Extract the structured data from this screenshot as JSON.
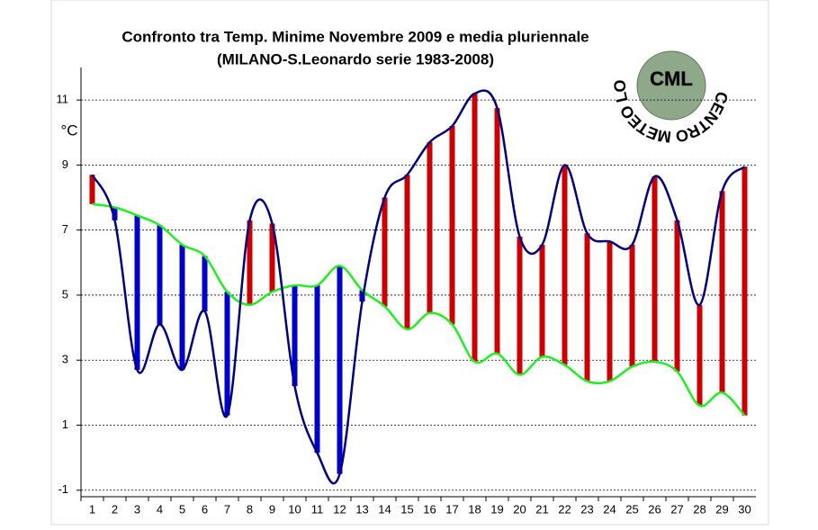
{
  "chart_data": {
    "type": "line",
    "title": "Confronto tra Temp. Minime Novembre 2009 e media pluriennale",
    "subtitle": "(MILANO-S.Leonardo serie 1983-2008)",
    "y_label": "°C",
    "logo": {
      "ring": "CENTRO METEO LOMBARDO",
      "abbr": "CML"
    },
    "categories": [
      "1",
      "2",
      "3",
      "4",
      "5",
      "6",
      "7",
      "8",
      "9",
      "10",
      "11",
      "12",
      "13",
      "14",
      "15",
      "16",
      "17",
      "18",
      "19",
      "20",
      "21",
      "22",
      "23",
      "24",
      "25",
      "26",
      "27",
      "28",
      "29",
      "30"
    ],
    "series": [
      {
        "color": "#000080",
        "values": [
          8.7,
          7.3,
          2.7,
          4.1,
          2.7,
          4.5,
          1.3,
          7.3,
          7.2,
          2.2,
          0.15,
          -0.5,
          4.8,
          8.0,
          8.7,
          9.7,
          10.2,
          11.2,
          10.75,
          6.8,
          6.55,
          9.0,
          6.9,
          6.65,
          6.55,
          8.65,
          7.3,
          4.7,
          8.2,
          8.95
        ]
      },
      {
        "color": "#22ee22",
        "values": [
          7.8,
          7.7,
          7.45,
          7.15,
          6.55,
          6.2,
          5.1,
          4.7,
          5.1,
          5.3,
          5.3,
          5.9,
          5.15,
          4.65,
          3.95,
          4.45,
          4.1,
          2.95,
          3.2,
          2.55,
          3.1,
          2.85,
          2.35,
          2.35,
          2.8,
          2.95,
          2.65,
          1.6,
          2.0,
          1.3
        ]
      }
    ],
    "above_color": "#cc0000",
    "below_color": "#0000cc",
    "ylim": [
      -1.2,
      12
    ],
    "yticks": [
      -1,
      1,
      3,
      5,
      7,
      9,
      11
    ],
    "grid": true
  }
}
